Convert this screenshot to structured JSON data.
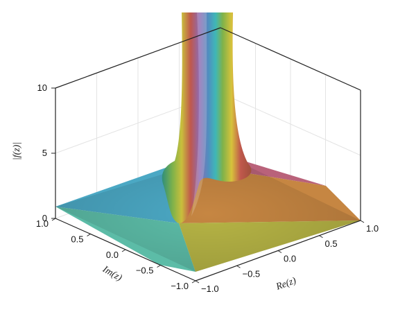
{
  "chart_data": {
    "type": "surface",
    "xlabel": "Re(z)",
    "ylabel": "Im(z)",
    "zlabel": "|f(z)|",
    "xlim": [
      -1.0,
      1.0
    ],
    "ylim": [
      -1.0,
      1.0
    ],
    "zlim": [
      0,
      10
    ],
    "x_ticks": [
      "−1.0",
      "−0.5",
      "0.0",
      "0.5",
      "1.0"
    ],
    "y_ticks": [
      "−1.0",
      "−0.5",
      "0.0",
      "0.5",
      "1.0"
    ],
    "z_ticks": [
      "0",
      "5",
      "10"
    ],
    "grid": true,
    "colormap": "phase (argument of f(z))",
    "features": "pole singularity at z = 0, surface clipped at |f(z)| = 10",
    "colors": {
      "teal": "#3FB7B7",
      "blue": "#4F8FC0",
      "purple": "#8E6BB2",
      "red": "#C0584C",
      "orange": "#D4893A",
      "yellow": "#D7C23B",
      "green": "#7FB24A"
    }
  }
}
